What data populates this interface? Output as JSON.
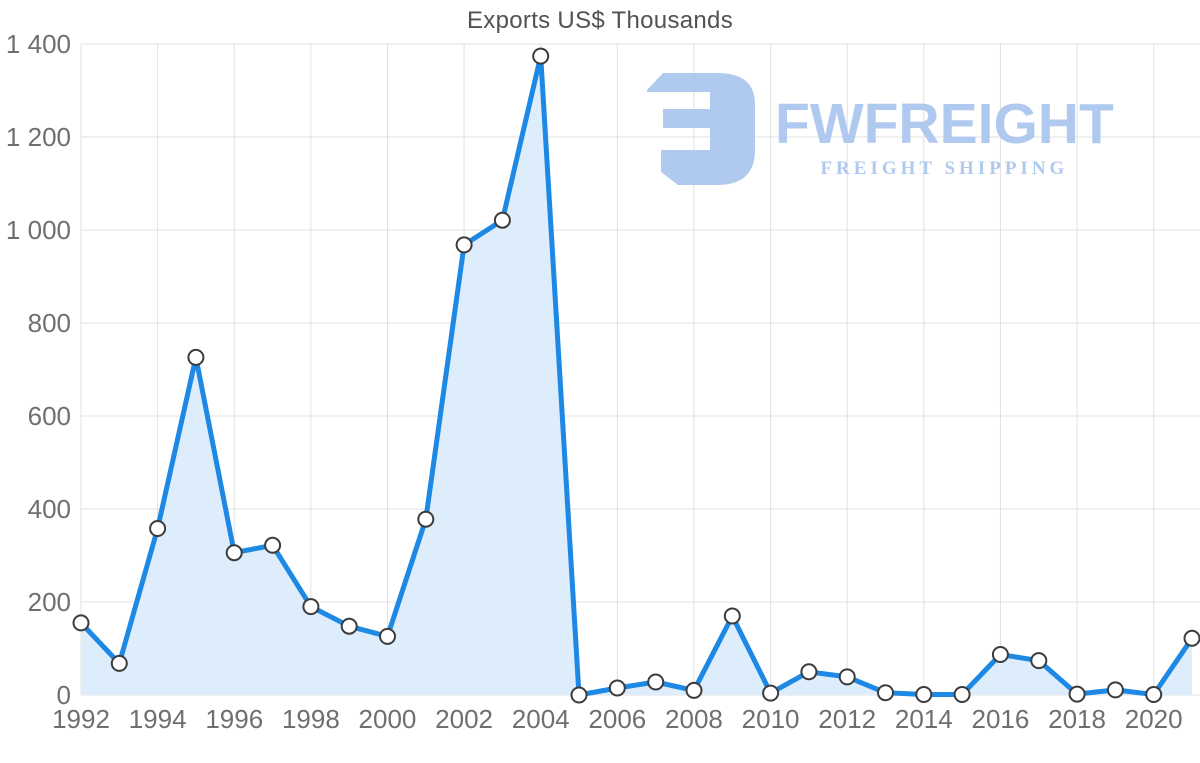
{
  "chart_data": {
    "type": "area",
    "title": "Exports US$ Thousands",
    "x": [
      1992,
      1993,
      1994,
      1995,
      1996,
      1997,
      1998,
      1999,
      2000,
      2001,
      2002,
      2003,
      2004,
      2005,
      2006,
      2007,
      2008,
      2009,
      2010,
      2011,
      2012,
      2013,
      2014,
      2015,
      2016,
      2017,
      2018,
      2019,
      2020,
      2021
    ],
    "values": [
      155,
      68,
      358,
      726,
      306,
      322,
      190,
      148,
      126,
      378,
      968,
      1021,
      1374,
      0,
      15,
      28,
      10,
      170,
      4,
      50,
      39,
      5,
      1,
      1,
      87,
      74,
      2,
      11,
      1,
      122
    ],
    "xlabel": "",
    "ylabel": "",
    "ylim": [
      0,
      1400
    ],
    "grid": true,
    "legend_position": "none",
    "y_ticks": [
      {
        "value": 0,
        "label": "0"
      },
      {
        "value": 200,
        "label": "200"
      },
      {
        "value": 400,
        "label": "400"
      },
      {
        "value": 600,
        "label": "600"
      },
      {
        "value": 800,
        "label": "800"
      },
      {
        "value": 1000,
        "label": "1 000"
      },
      {
        "value": 1200,
        "label": "1 200"
      },
      {
        "value": 1400,
        "label": "1 400"
      }
    ],
    "x_tick_labels": [
      "1992",
      "1994",
      "1996",
      "1998",
      "2000",
      "2002",
      "2004",
      "2006",
      "2008",
      "2010",
      "2012",
      "2014",
      "2016",
      "2018",
      "2020"
    ],
    "line_color": "#1E88E5",
    "fill_color": "#DEEDFB",
    "marker_fill": "#FFFFFF",
    "marker_stroke": "#3C3C3C"
  },
  "axis_style": {
    "grid_color": "#E0E0E0",
    "tick_text_color": "#6F6F6F"
  },
  "logo": {
    "name": "FWFREIGHT",
    "tagline": "FREIGHT SHIPPING",
    "color": "#A9C5EE"
  }
}
